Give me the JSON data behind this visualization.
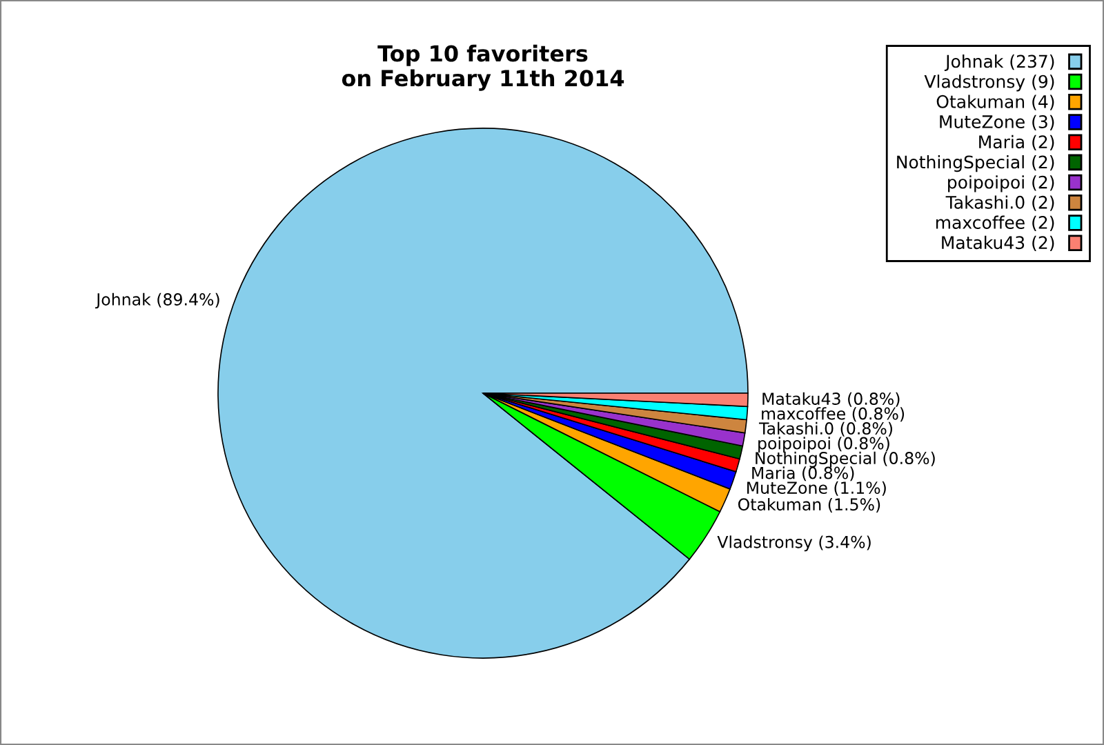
{
  "chart_data": {
    "type": "pie",
    "title": "Top 10 favoriters\non February 11th 2014",
    "categories": [
      "Johnak (237)",
      "Vladstronsy (9)",
      "Otakuman (4)",
      "MuteZone (3)",
      "Maria (2)",
      "NothingSpecial (2)",
      "poipoipoi (2)",
      "Takashi.0 (2)",
      "maxcoffee (2)",
      "Mataku43 (2)"
    ],
    "values": [
      89.4,
      3.4,
      1.5,
      1.1,
      0.8,
      0.8,
      0.8,
      0.8,
      0.8,
      0.8
    ],
    "value_labels": [
      "Johnak (89.4%)",
      "Vladstronsy (3.4%)",
      "Otakuman (1.5%)",
      "MuteZone (1.1%)",
      "Maria (0.8%)",
      "NothingSpecial (0.8%)",
      "poipoipoi (0.8%)",
      "Takashi.0 (0.8%)",
      "maxcoffee (0.8%)",
      "Mataku43 (0.8%)"
    ],
    "colors": [
      "#87ceeb",
      "#00ff00",
      "#ffa500",
      "#0000ff",
      "#ff0000",
      "#006400",
      "#9932cc",
      "#cd853f",
      "#00ffff",
      "#fa8072"
    ],
    "legend": "top right"
  }
}
